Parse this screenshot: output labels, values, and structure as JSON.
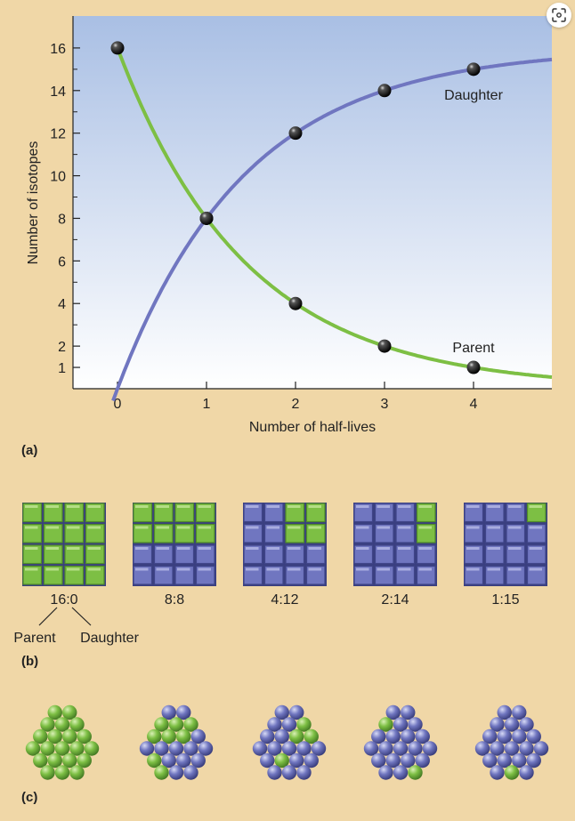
{
  "chart_data": {
    "type": "line",
    "xlabel": "Number of half-lives",
    "ylabel": "Number of isotopes",
    "xlim": [
      -0.5,
      4.88
    ],
    "ylim": [
      0,
      17.5
    ],
    "x_ticks": [
      "0",
      "1",
      "2",
      "3",
      "4"
    ],
    "y_ticks": [
      "1",
      "2",
      "4",
      "6",
      "8",
      "10",
      "12",
      "14",
      "16"
    ],
    "series": [
      {
        "name": "Parent",
        "color": "#7dbf44",
        "points": [
          [
            0,
            16
          ],
          [
            1,
            8
          ],
          [
            2,
            4
          ],
          [
            3,
            2
          ],
          [
            4,
            1
          ]
        ]
      },
      {
        "name": "Daughter",
        "color": "#7076c0",
        "points": [
          [
            1,
            8
          ],
          [
            2,
            12
          ],
          [
            3,
            14
          ],
          [
            4,
            15
          ]
        ]
      }
    ],
    "grid": false
  },
  "panels": {
    "a": "(a)",
    "b": "(b)",
    "c": "(c)"
  },
  "ratios": [
    {
      "label": "16:0",
      "parent": 16
    },
    {
      "label": "8:8",
      "parent": 8
    },
    {
      "label": "4:12",
      "parent": 4
    },
    {
      "label": "2:14",
      "parent": 2
    },
    {
      "label": "1:15",
      "parent": 1
    }
  ],
  "ratio_legend": {
    "parent": "Parent",
    "daughter": "Daughter"
  },
  "colors": {
    "background": "#f0d7a7",
    "parent": "#7dbf44",
    "daughter": "#7076c0",
    "plot_top": "#a9bfe4",
    "plot_bottom": "#ffffff"
  },
  "icons": {
    "scan": "scan-icon"
  }
}
